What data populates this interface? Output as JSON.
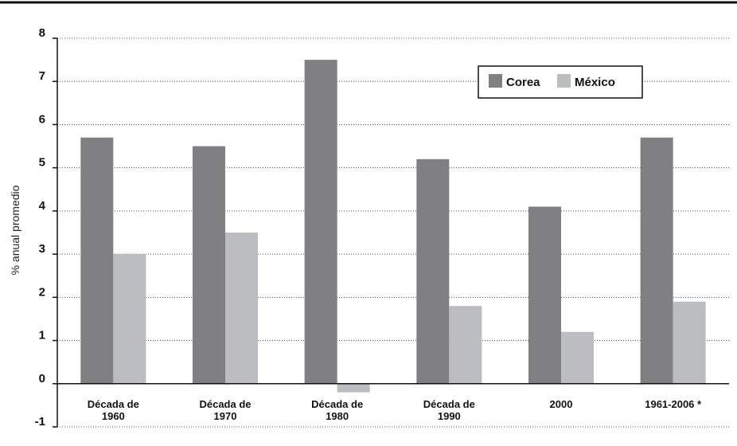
{
  "chart_data": {
    "type": "bar",
    "categories": [
      [
        "Década de",
        "1960"
      ],
      [
        "Década de",
        "1970"
      ],
      [
        "Década de",
        "1980"
      ],
      [
        "Década de",
        "1990"
      ],
      [
        "2000"
      ],
      [
        "1961-2006 *"
      ]
    ],
    "series": [
      {
        "name": "Corea",
        "values": [
          5.7,
          5.5,
          7.5,
          5.2,
          4.1,
          5.7
        ],
        "color": "#808083"
      },
      {
        "name": "México",
        "values": [
          3.0,
          3.5,
          -0.2,
          1.8,
          1.2,
          1.9
        ],
        "color": "#bcbdc0"
      }
    ],
    "ylabel": "% anual promedio",
    "yticks": [
      "8",
      "7",
      "6",
      "5",
      "4",
      "3",
      "2",
      "1",
      "0",
      "-1"
    ],
    "ylim": [
      -1,
      8
    ],
    "grid": true,
    "legend_position": "top-right"
  }
}
